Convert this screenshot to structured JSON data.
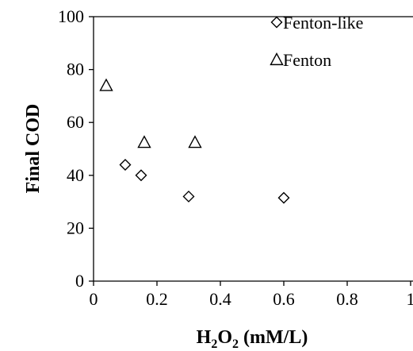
{
  "chart_data": {
    "type": "scatter",
    "title": "",
    "xlabel_parts": {
      "base1": "H",
      "sub1": "2",
      "base2": "O",
      "sub2": "2",
      "rest": " (mM/L)"
    },
    "ylabel": "Final  COD",
    "xlim": [
      0,
      1
    ],
    "ylim": [
      0,
      100
    ],
    "xticks": [
      0,
      0.2,
      0.4,
      0.6,
      0.8,
      1
    ],
    "xtick_labels": [
      "0",
      "0.2",
      "0.4",
      "0.6",
      "0.8",
      "1"
    ],
    "yticks": [
      0,
      20,
      40,
      60,
      80,
      100
    ],
    "ytick_labels": [
      "0",
      "20",
      "40",
      "60",
      "80",
      "100"
    ],
    "grid": false,
    "legend_position": "top-right",
    "series": [
      {
        "name": "Fenton-like",
        "marker": "diamond",
        "color": "#000000",
        "points": [
          {
            "x": 0.1,
            "y": 44
          },
          {
            "x": 0.15,
            "y": 40
          },
          {
            "x": 0.3,
            "y": 32
          },
          {
            "x": 0.6,
            "y": 31.5
          }
        ]
      },
      {
        "name": "Fenton",
        "marker": "triangle",
        "color": "#000000",
        "points": [
          {
            "x": 0.04,
            "y": 74
          },
          {
            "x": 0.16,
            "y": 52.5
          },
          {
            "x": 0.32,
            "y": 52.5
          }
        ]
      }
    ]
  }
}
